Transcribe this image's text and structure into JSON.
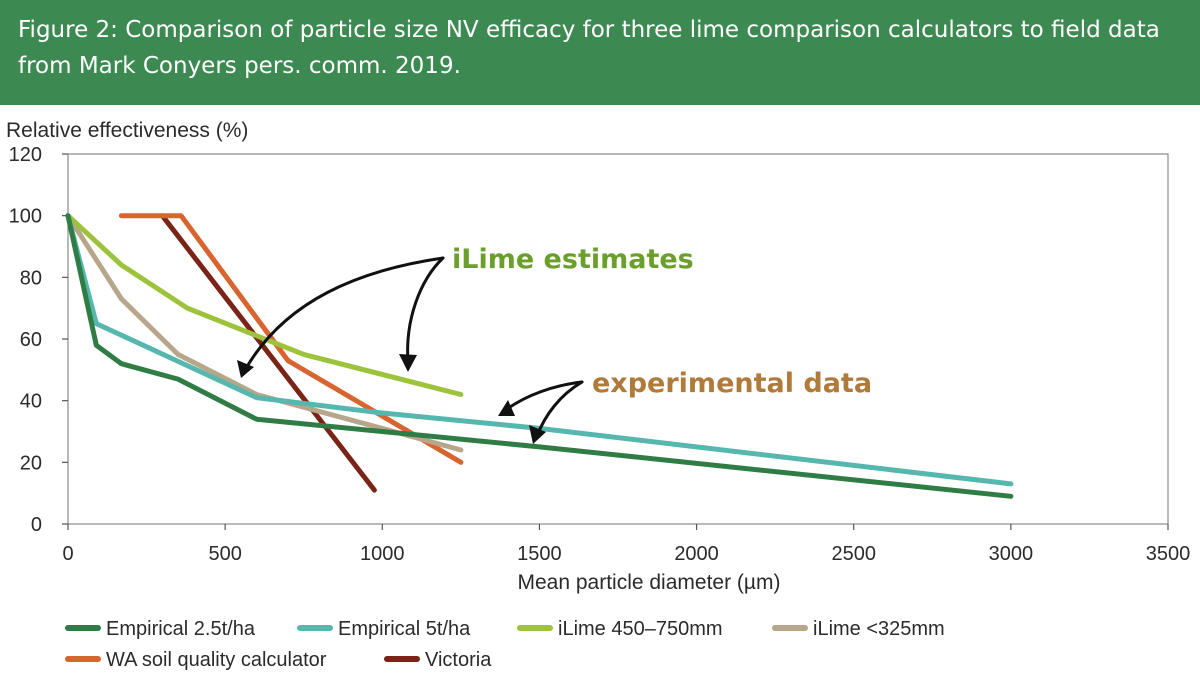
{
  "header": {
    "caption": "Figure 2: Comparison of particle size NV efficacy for three lime comparison calculators to field data from Mark Conyers pers. comm. 2019."
  },
  "chart_data": {
    "type": "line",
    "ylabel": "Relative effectiveness (%)",
    "xlabel": "Mean particle diameter (µm)",
    "xlim": [
      0,
      3500
    ],
    "ylim": [
      0,
      120
    ],
    "xticks": [
      0,
      500,
      1000,
      1500,
      2000,
      2500,
      3000,
      3500
    ],
    "yticks": [
      0,
      20,
      40,
      60,
      80,
      100,
      120
    ],
    "grid": false,
    "legend_position": "bottom",
    "series": [
      {
        "name": "Empirical 2.5t/ha",
        "color": "#2f7d45",
        "x": [
          0,
          90,
          170,
          350,
          600,
          1000,
          1500,
          3000
        ],
        "y": [
          100,
          58,
          52,
          47,
          34,
          30,
          25,
          9
        ]
      },
      {
        "name": "Empirical 5t/ha",
        "color": "#55b7ad",
        "x": [
          0,
          90,
          600,
          1000,
          1500,
          3000
        ],
        "y": [
          100,
          65,
          41,
          36,
          31,
          13
        ]
      },
      {
        "name": "iLime 450–750mm",
        "color": "#9dc23b",
        "x": [
          0,
          170,
          380,
          750,
          1250
        ],
        "y": [
          100,
          84,
          70,
          55,
          42
        ]
      },
      {
        "name": "iLime <325mm",
        "color": "#b8a68a",
        "x": [
          0,
          170,
          350,
          600,
          1000,
          1250
        ],
        "y": [
          100,
          73,
          55,
          42,
          31,
          24
        ]
      },
      {
        "name": "WA soil quality calculator",
        "color": "#d8642f",
        "x": [
          170,
          360,
          700,
          1250
        ],
        "y": [
          100,
          100,
          53,
          20
        ]
      },
      {
        "name": "Victoria",
        "color": "#7a2418",
        "x": [
          300,
          975
        ],
        "y": [
          100,
          11
        ]
      }
    ],
    "annotations": [
      {
        "text": "iLime estimates",
        "color": "#6a9f2c"
      },
      {
        "text": "experimental data",
        "color": "#b07a3a"
      }
    ]
  }
}
